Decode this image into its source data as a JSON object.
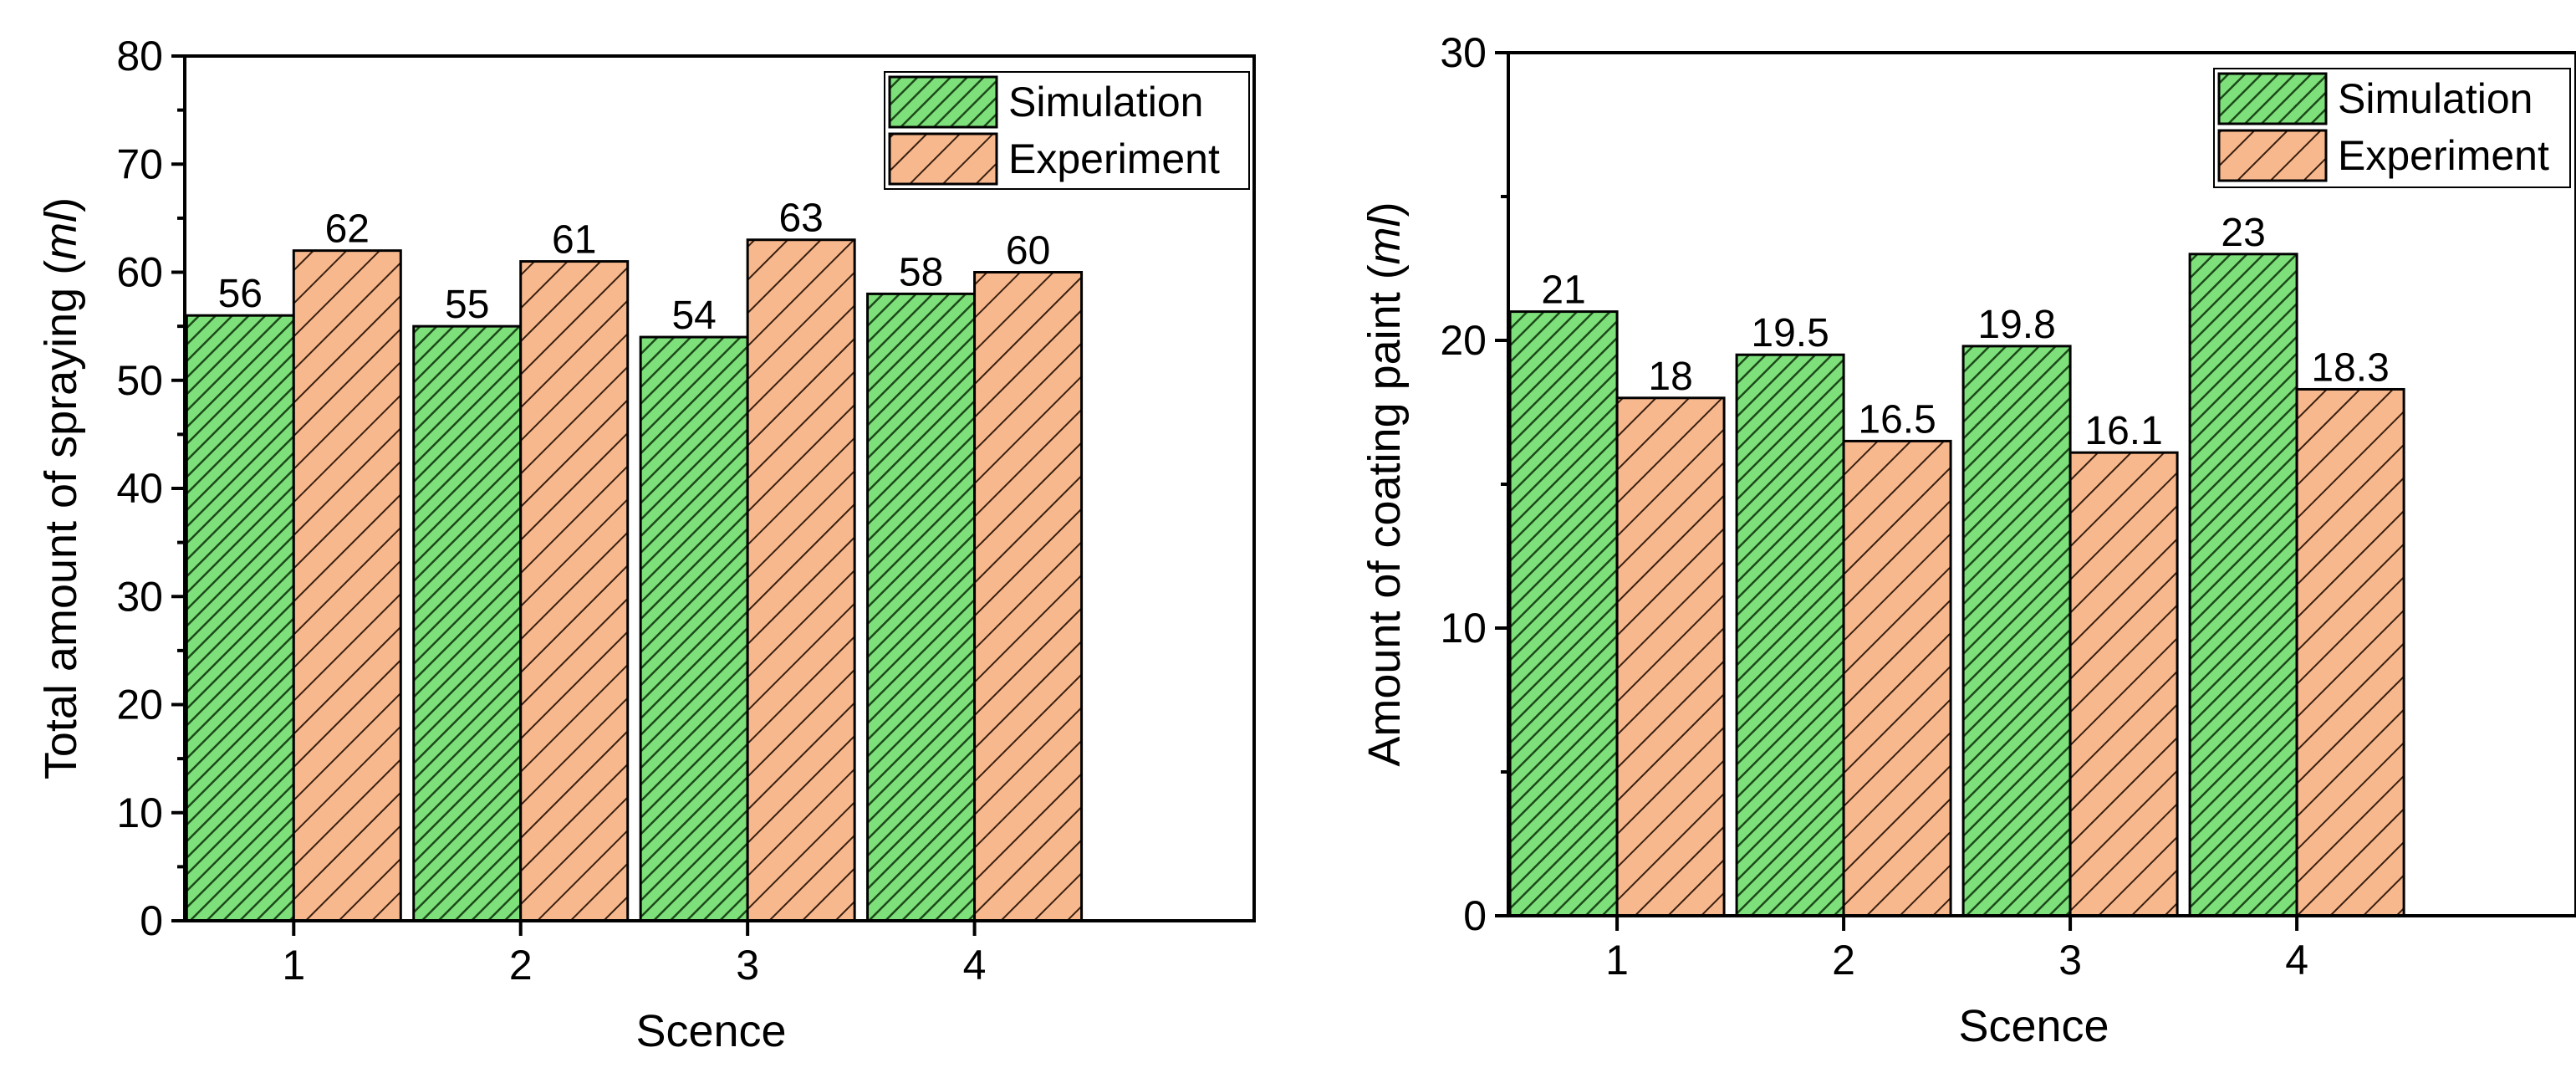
{
  "chart_data": [
    {
      "type": "bar",
      "title": "",
      "categories": [
        "1",
        "2",
        "3",
        "4"
      ],
      "series": [
        {
          "name": "Simulation",
          "values": [
            56,
            55,
            54,
            58
          ],
          "labels": [
            "56",
            "55",
            "54",
            "58"
          ],
          "color": "#7ee07a",
          "hatch_color": "#1c4a1a"
        },
        {
          "name": "Experiment",
          "values": [
            62,
            61,
            63,
            60
          ],
          "labels": [
            "62",
            "61",
            "63",
            "60"
          ],
          "color": "#f8b88e",
          "hatch_color": "#3a2010"
        }
      ],
      "xlabel": "Scence",
      "ylabel_prefix": "Total amount of spraying (",
      "ylabel_unit": "ml",
      "ylabel_suffix": ")",
      "ylim": [
        0,
        80
      ],
      "yticks": [
        "0",
        "10",
        "20",
        "30",
        "40",
        "50",
        "60",
        "70",
        "80"
      ],
      "ytick_values": [
        0,
        10,
        20,
        30,
        40,
        50,
        60,
        70,
        80
      ],
      "yminor_step": 5,
      "grid": false,
      "legend_position": "top-right"
    },
    {
      "type": "bar",
      "title": "",
      "categories": [
        "1",
        "2",
        "3",
        "4"
      ],
      "series": [
        {
          "name": "Simulation",
          "values": [
            21,
            19.5,
            19.8,
            23
          ],
          "labels": [
            "21",
            "19.5",
            "19.8",
            "23"
          ],
          "color": "#7ee07a",
          "hatch_color": "#1c4a1a"
        },
        {
          "name": "Experiment",
          "values": [
            18,
            16.5,
            16.1,
            18.3
          ],
          "labels": [
            "18",
            "16.5",
            "16.1",
            "18.3"
          ],
          "color": "#f8b88e",
          "hatch_color": "#3a2010"
        }
      ],
      "xlabel": "Scence",
      "ylabel_prefix": "Amount of coating paint (",
      "ylabel_unit": "ml",
      "ylabel_suffix": ")",
      "ylim": [
        0,
        30
      ],
      "yticks": [
        "0",
        "10",
        "20",
        "30"
      ],
      "ytick_values": [
        0,
        10,
        20,
        30
      ],
      "yminor_step": 5,
      "grid": false,
      "legend_position": "top-right"
    }
  ]
}
